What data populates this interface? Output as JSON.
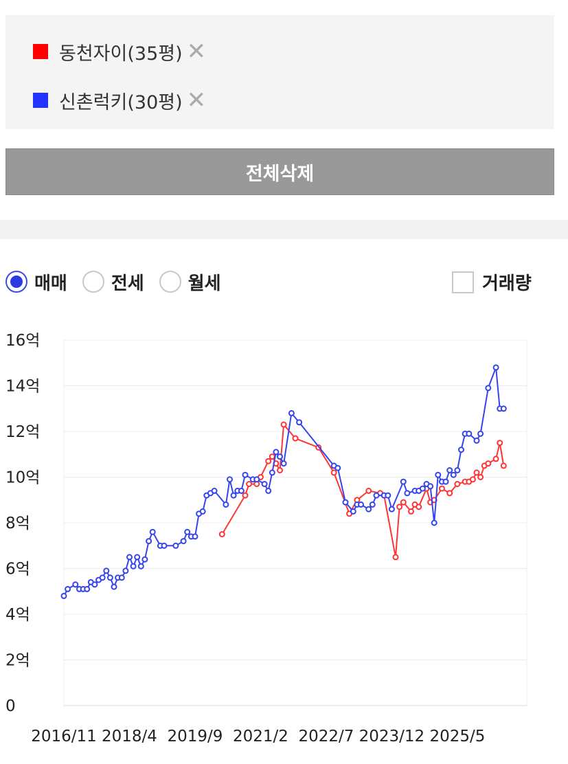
{
  "compare": {
    "items": [
      {
        "label": "동천자이(35평)",
        "color": "#ff0000",
        "remove": "✕"
      },
      {
        "label": "신촌럭키(30평)",
        "color": "#2233ff",
        "remove": "✕"
      }
    ],
    "clear_label": "전체삭제"
  },
  "filters": {
    "options": [
      {
        "label": "매매",
        "checked": true
      },
      {
        "label": "전세",
        "checked": false
      },
      {
        "label": "월세",
        "checked": false
      }
    ],
    "volume_label": "거래량"
  },
  "chart_data": {
    "type": "line",
    "xlabel": "",
    "ylabel": "",
    "x_ticks": [
      "2016/11",
      "2018/4",
      "2019/9",
      "2021/2",
      "2022/7",
      "2023/12",
      "2025/5"
    ],
    "y_ticks": [
      "0",
      "2억",
      "4억",
      "6억",
      "8억",
      "10억",
      "12억",
      "14억",
      "16억"
    ],
    "xlim": [
      "2016-11",
      "2026-11"
    ],
    "ylim": [
      0,
      16
    ],
    "y_unit": "억",
    "grid": "horizontal",
    "series": [
      {
        "name": "동천자이(35평)",
        "color": "#ff3333",
        "x": [
          "2020-04",
          "2020-10",
          "2020-11",
          "2021-01",
          "2021-02",
          "2021-04",
          "2021-05",
          "2021-06",
          "2021-07",
          "2021-08",
          "2021-11",
          "2022-05",
          "2022-09",
          "2023-01",
          "2023-03",
          "2023-06",
          "2023-09",
          "2023-10",
          "2024-01",
          "2024-02",
          "2024-03",
          "2024-05",
          "2024-06",
          "2024-07",
          "2024-09",
          "2024-10",
          "2024-11",
          "2025-01",
          "2025-03",
          "2025-05",
          "2025-07",
          "2025-08",
          "2025-09",
          "2025-10",
          "2025-11",
          "2025-12",
          "2026-01",
          "2026-03",
          "2026-04",
          "2026-05"
        ],
        "values": [
          7.5,
          9.2,
          9.7,
          9.7,
          10.0,
          10.7,
          10.9,
          10.6,
          10.3,
          12.3,
          11.7,
          11.3,
          10.2,
          8.4,
          9.0,
          9.4,
          9.3,
          9.2,
          6.5,
          8.7,
          8.9,
          8.5,
          8.8,
          8.7,
          9.5,
          8.9,
          9.0,
          9.5,
          9.3,
          9.7,
          9.8,
          9.8,
          9.9,
          10.2,
          10.0,
          10.5,
          10.6,
          10.8,
          11.5,
          10.5
        ]
      },
      {
        "name": "신촌럭키(30평)",
        "color": "#3344ee",
        "x": [
          "2016-11",
          "2016-12",
          "2017-02",
          "2017-03",
          "2017-04",
          "2017-05",
          "2017-06",
          "2017-07",
          "2017-08",
          "2017-09",
          "2017-10",
          "2017-11",
          "2017-12",
          "2018-01",
          "2018-02",
          "2018-03",
          "2018-04",
          "2018-05",
          "2018-06",
          "2018-07",
          "2018-08",
          "2018-09",
          "2018-10",
          "2018-12",
          "2019-01",
          "2019-04",
          "2019-06",
          "2019-07",
          "2019-08",
          "2019-09",
          "2019-10",
          "2019-11",
          "2019-12",
          "2020-01",
          "2020-02",
          "2020-05",
          "2020-06",
          "2020-07",
          "2020-08",
          "2020-09",
          "2020-10",
          "2020-12",
          "2021-01",
          "2021-03",
          "2021-04",
          "2021-05",
          "2021-06",
          "2021-07",
          "2021-08",
          "2021-10",
          "2021-12",
          "2022-09",
          "2022-10",
          "2022-12",
          "2023-02",
          "2023-03",
          "2023-04",
          "2023-06",
          "2023-07",
          "2023-08",
          "2023-10",
          "2023-11",
          "2023-12",
          "2024-03",
          "2024-04",
          "2024-06",
          "2024-07",
          "2024-08",
          "2024-09",
          "2024-10",
          "2024-11",
          "2024-12",
          "2025-01",
          "2025-02",
          "2025-03",
          "2025-04",
          "2025-05",
          "2025-06",
          "2025-07",
          "2025-08",
          "2025-10",
          "2025-11",
          "2026-01",
          "2026-03",
          "2026-04",
          "2026-05"
        ],
        "values": [
          4.8,
          5.1,
          5.3,
          5.1,
          5.1,
          5.1,
          5.4,
          5.3,
          5.5,
          5.6,
          5.9,
          5.6,
          5.2,
          5.6,
          5.6,
          5.9,
          6.5,
          6.1,
          6.5,
          6.1,
          6.4,
          7.2,
          7.6,
          7.0,
          7.0,
          7.0,
          7.2,
          7.6,
          7.4,
          7.4,
          8.4,
          8.5,
          9.2,
          9.3,
          9.4,
          8.8,
          9.9,
          9.2,
          9.4,
          9.4,
          10.1,
          9.9,
          9.9,
          9.7,
          9.4,
          10.2,
          11.1,
          10.9,
          10.6,
          12.8,
          12.4,
          10.5,
          10.4,
          8.9,
          8.5,
          8.8,
          8.8,
          8.6,
          8.8,
          9.2,
          9.2,
          9.2,
          8.6,
          9.8,
          9.3,
          9.4,
          9.4,
          9.5,
          9.7,
          9.6,
          8.0,
          10.1,
          9.8,
          9.8,
          10.3,
          10.1,
          10.3,
          11.2,
          11.9,
          11.9,
          11.6,
          11.9,
          13.9,
          14.8,
          13.0,
          13.0
        ]
      }
    ]
  }
}
